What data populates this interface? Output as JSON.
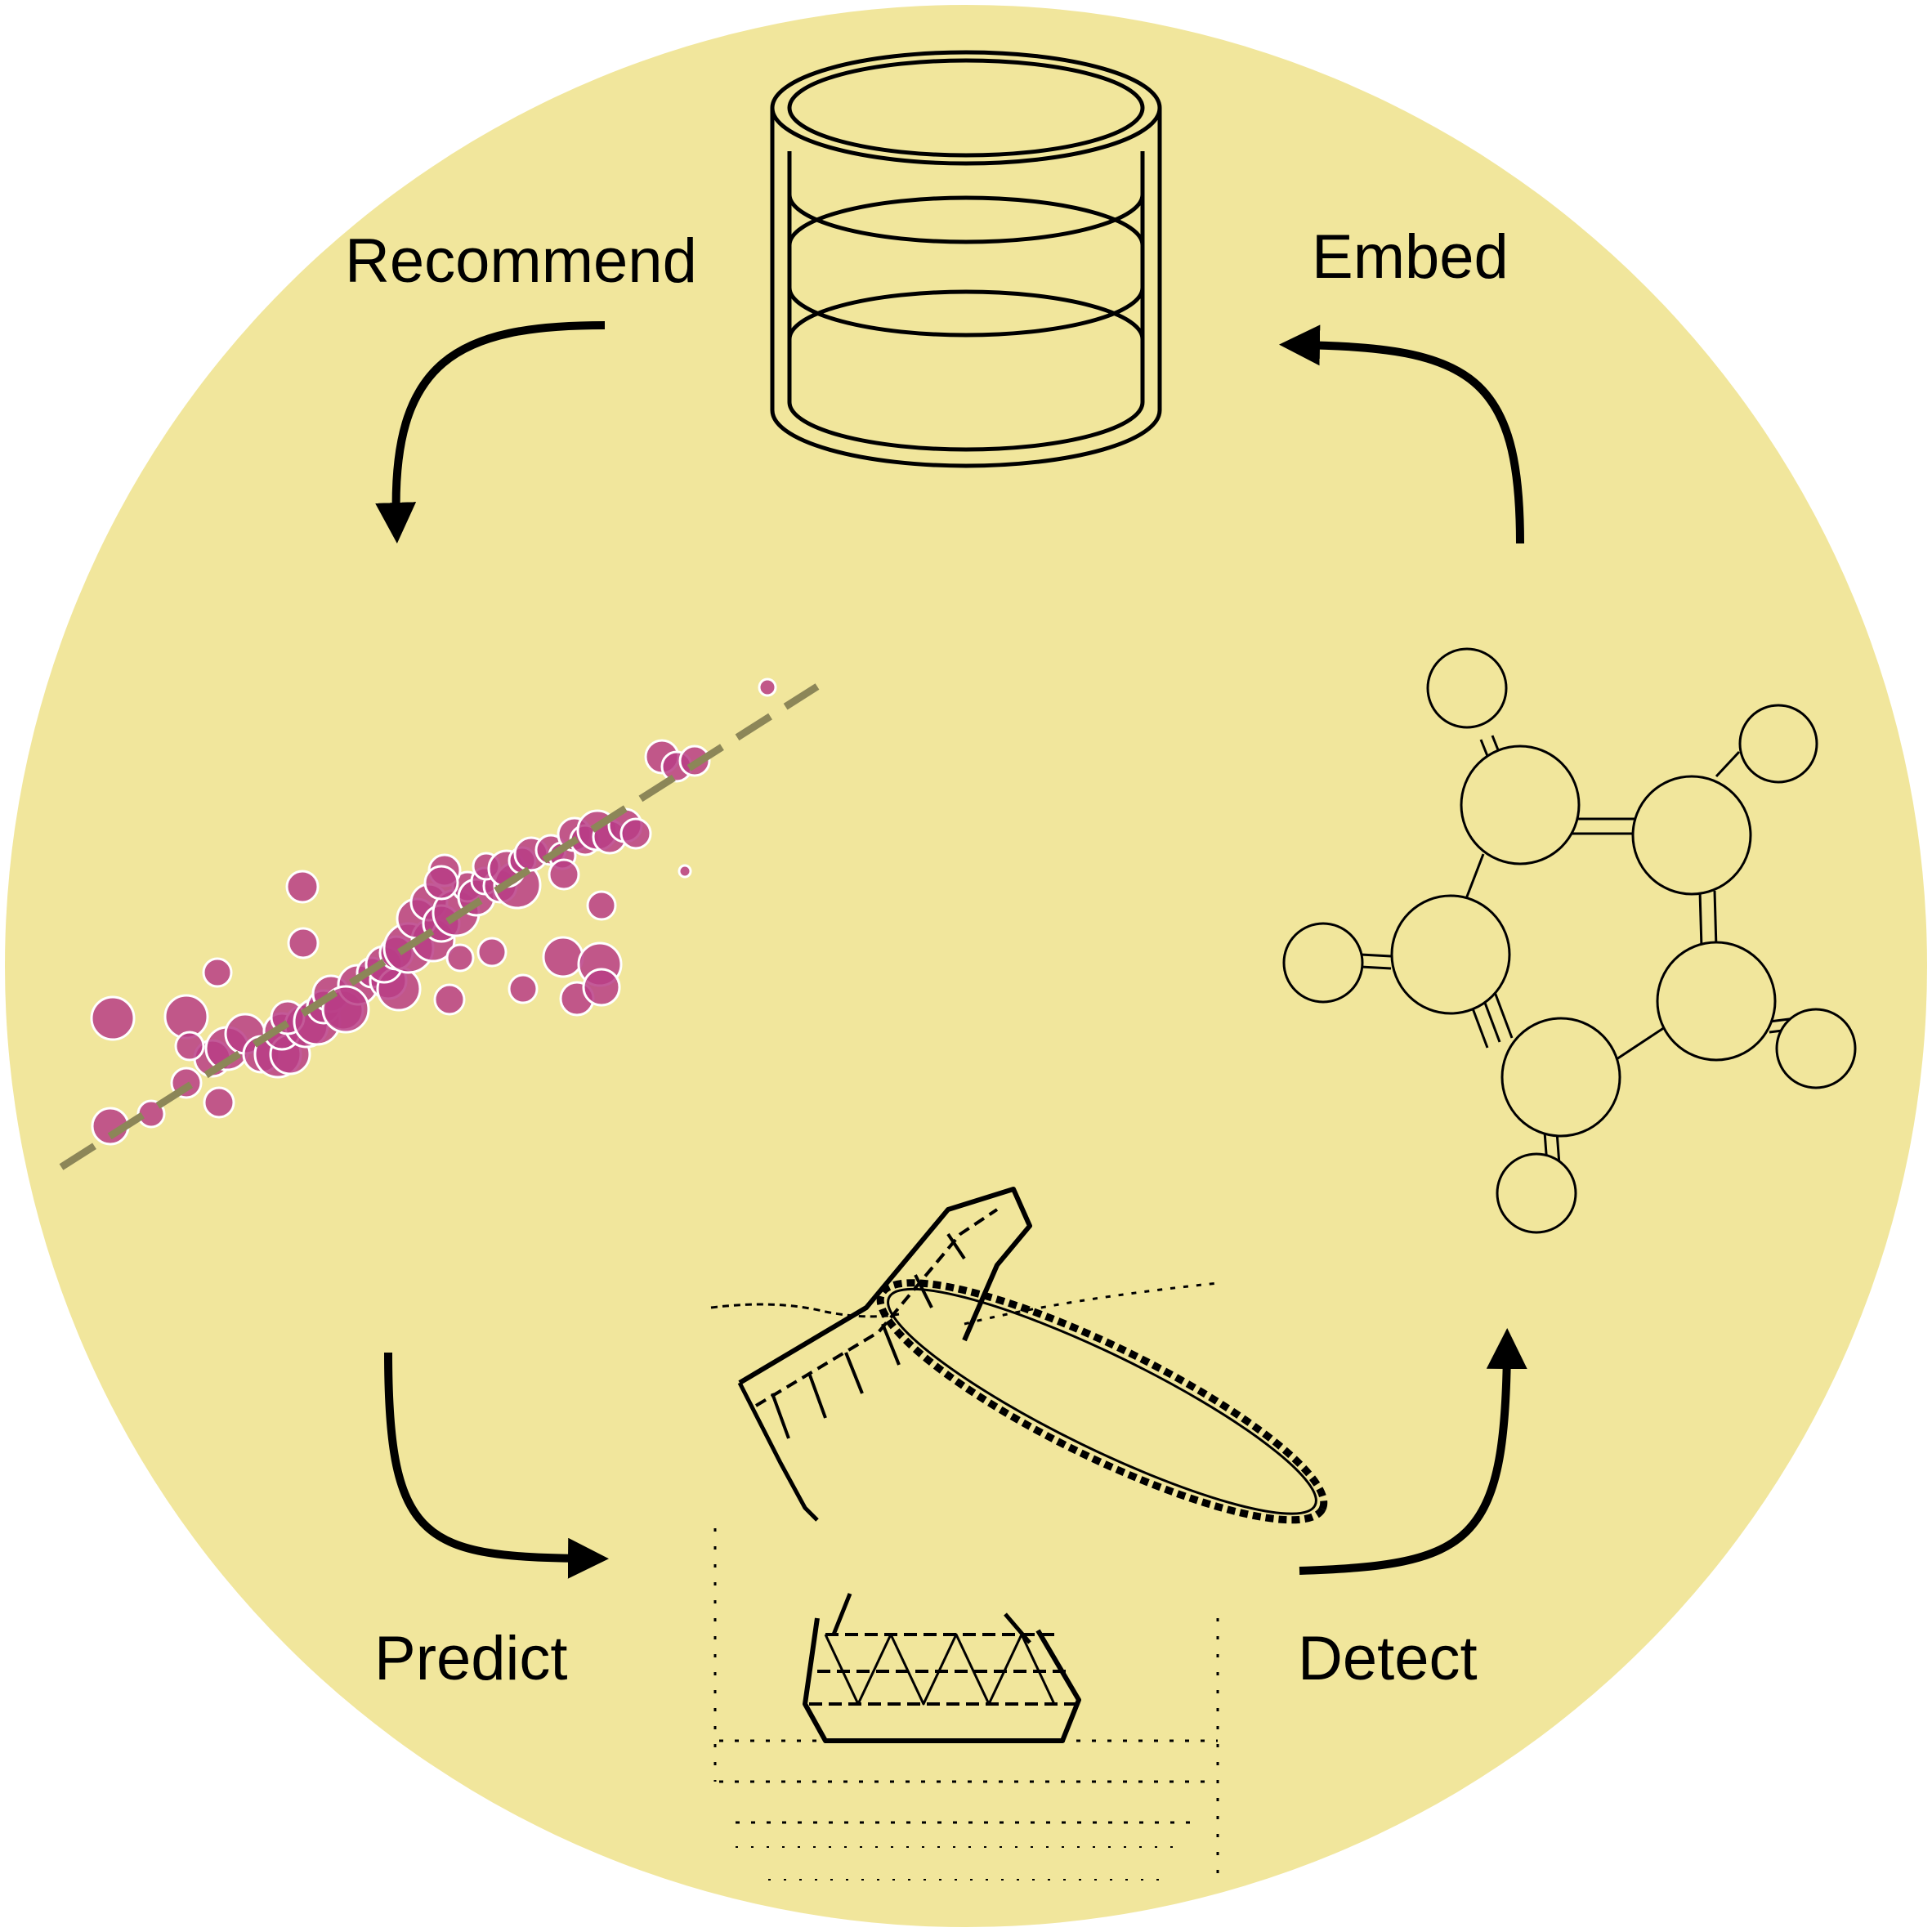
{
  "diagram": {
    "background_color": "#F1E69C",
    "scatter_color": "#B83D86",
    "trend_color": "#8C8658",
    "steps": {
      "recommend": "Recommend",
      "embed": "Embed",
      "predict": "Predict",
      "detect": "Detect"
    },
    "icons": {
      "top": "database-icon",
      "left": "scatter-plot-icon",
      "right": "molecule-icon",
      "bottom": "radio-telescope-icon"
    }
  }
}
